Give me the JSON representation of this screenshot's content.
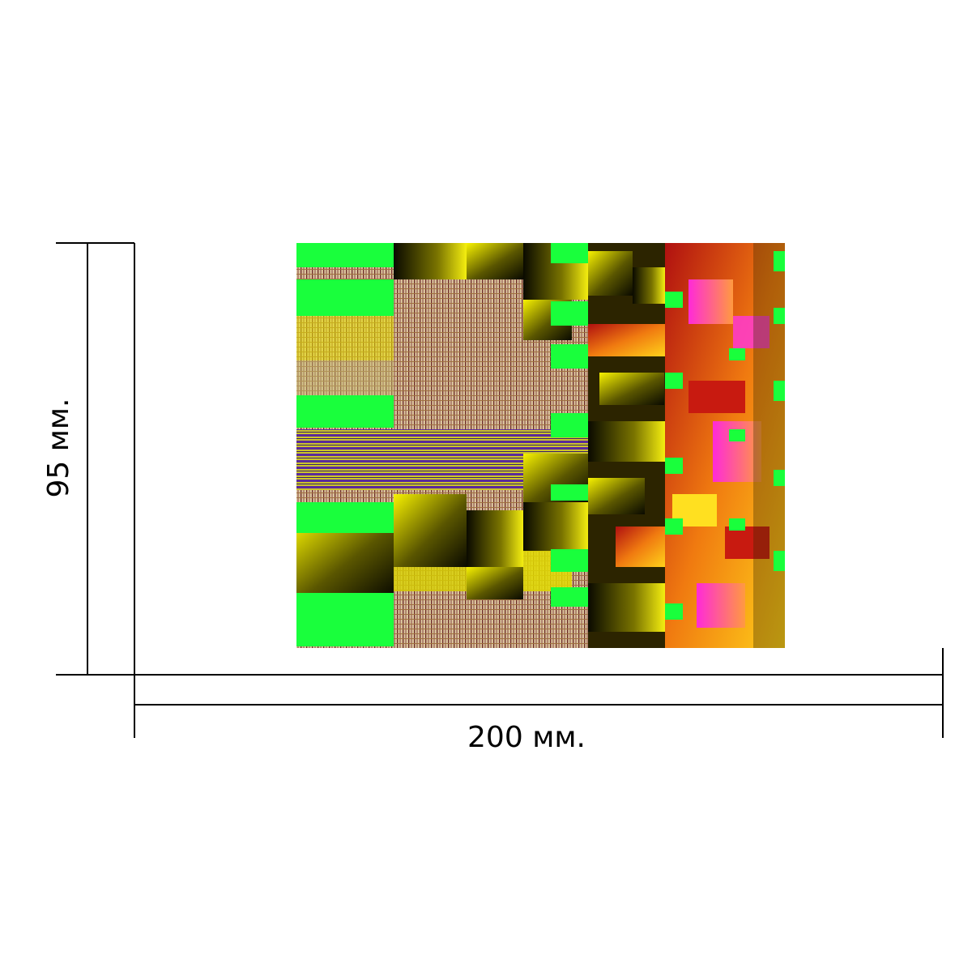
{
  "dimensions": {
    "width_label": "200 мм.",
    "height_label": "95 мм."
  },
  "colors": {
    "line": "#000000",
    "background": "#ffffff",
    "artwork_green": "#19ff3c",
    "artwork_yellow": "#f2f000",
    "artwork_dark": "#141400",
    "artwork_red": "#e02a10",
    "artwork_magenta": "#ff3ad2",
    "artwork_purple": "#6b2aa8",
    "artwork_mesh": "#c9a67a"
  }
}
